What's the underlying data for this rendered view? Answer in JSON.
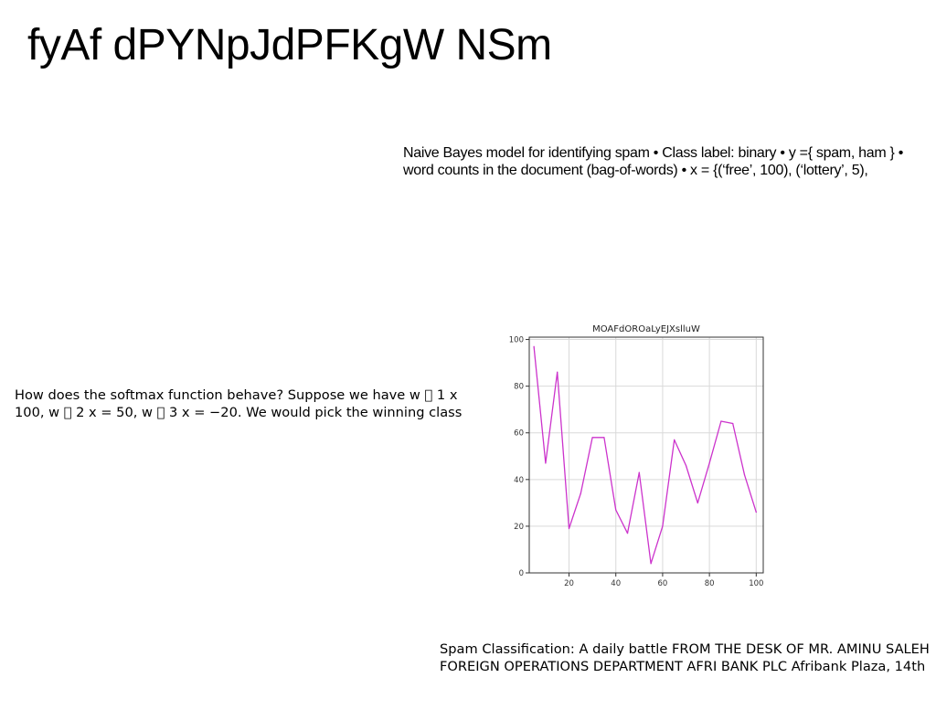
{
  "page": {
    "title": "fyAf dPYNpJdPFKgW NSm"
  },
  "naive_bayes_text": {
    "line1": "Naive Bayes model for identifying spam • Class label: binary • y ={ spam, ham } •",
    "line2": "word counts in the document (bag-of-words) • x = {(‘free’, 100), (‘lottery’, 5),"
  },
  "softmax_text": {
    "line1": "How does the softmax function behave? Suppose we have w \u0000 1 x",
    "line2": "100, w \u0000 2 x = 50, w \u0000 3 x = −20. We would pick the winning class"
  },
  "spam_text": {
    "line1": "Spam Classification: A daily battle FROM THE DESK OF MR. AMINU SALEH",
    "line2": "FOREIGN OPERATIONS DEPARTMENT AFRI BANK PLC Afribank Plaza, 14th"
  },
  "chart_data": {
    "type": "line",
    "title": "MOAFdOROaLyEJXslluW",
    "xlabel": "",
    "ylabel": "",
    "xlim": [
      3,
      103
    ],
    "ylim": [
      0,
      101
    ],
    "grid": true,
    "x_ticks": [
      20,
      40,
      60,
      80,
      100
    ],
    "y_ticks": [
      0,
      20,
      40,
      60,
      80,
      100
    ],
    "line_color": "#cc33cc",
    "x": [
      5,
      10,
      15,
      20,
      25,
      30,
      35,
      40,
      45,
      50,
      55,
      60,
      65,
      70,
      75,
      80,
      85,
      90,
      95,
      100
    ],
    "values": [
      97,
      47,
      86,
      19,
      34,
      58,
      58,
      27,
      17,
      43,
      4,
      20,
      57,
      46,
      30,
      47,
      65,
      64,
      42,
      26
    ]
  }
}
